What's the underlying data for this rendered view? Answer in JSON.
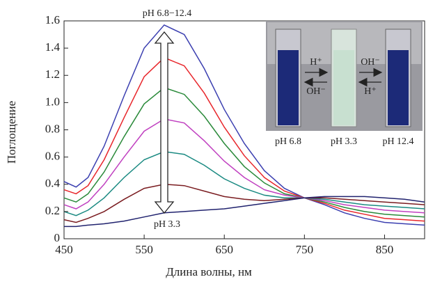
{
  "chart_data": {
    "type": "line",
    "xlabel": "Длина волны, нм",
    "ylabel": "Поглощение",
    "x": [
      450,
      465,
      480,
      500,
      525,
      550,
      575,
      600,
      625,
      650,
      675,
      700,
      725,
      750,
      775,
      800,
      825,
      850,
      875,
      900
    ],
    "series": [
      {
        "color": "#3b3fb0",
        "values": [
          0.42,
          0.38,
          0.45,
          0.68,
          1.05,
          1.4,
          1.57,
          1.5,
          1.25,
          0.95,
          0.7,
          0.5,
          0.37,
          0.3,
          0.25,
          0.19,
          0.15,
          0.12,
          0.11,
          0.1
        ]
      },
      {
        "color": "#e8262b",
        "values": [
          0.36,
          0.33,
          0.39,
          0.58,
          0.89,
          1.19,
          1.33,
          1.27,
          1.07,
          0.82,
          0.61,
          0.45,
          0.35,
          0.3,
          0.26,
          0.21,
          0.18,
          0.15,
          0.14,
          0.13
        ]
      },
      {
        "color": "#2a8a3a",
        "values": [
          0.3,
          0.27,
          0.33,
          0.49,
          0.75,
          0.99,
          1.11,
          1.06,
          0.9,
          0.7,
          0.53,
          0.41,
          0.33,
          0.3,
          0.27,
          0.23,
          0.2,
          0.18,
          0.17,
          0.16
        ]
      },
      {
        "color": "#c040c0",
        "values": [
          0.25,
          0.22,
          0.27,
          0.4,
          0.6,
          0.79,
          0.88,
          0.85,
          0.72,
          0.57,
          0.45,
          0.36,
          0.32,
          0.3,
          0.28,
          0.25,
          0.23,
          0.21,
          0.2,
          0.19
        ]
      },
      {
        "color": "#1a8a82",
        "values": [
          0.2,
          0.17,
          0.21,
          0.3,
          0.45,
          0.58,
          0.64,
          0.62,
          0.54,
          0.44,
          0.37,
          0.32,
          0.3,
          0.3,
          0.29,
          0.27,
          0.25,
          0.24,
          0.23,
          0.22
        ]
      },
      {
        "color": "#7a1c20",
        "values": [
          0.14,
          0.12,
          0.15,
          0.2,
          0.29,
          0.37,
          0.4,
          0.39,
          0.35,
          0.31,
          0.29,
          0.28,
          0.29,
          0.3,
          0.3,
          0.29,
          0.28,
          0.27,
          0.26,
          0.25
        ]
      },
      {
        "color": "#20226e",
        "values": [
          0.09,
          0.09,
          0.1,
          0.11,
          0.13,
          0.16,
          0.19,
          0.2,
          0.21,
          0.22,
          0.24,
          0.26,
          0.28,
          0.3,
          0.31,
          0.31,
          0.31,
          0.3,
          0.29,
          0.27
        ]
      }
    ],
    "xlim": [
      450,
      900
    ],
    "xticks": [
      450,
      550,
      650,
      750,
      850
    ],
    "ylim": [
      0,
      1.6
    ],
    "yticks": [
      0,
      0.2,
      0.4,
      0.6,
      0.8,
      {
        "value": 1,
        "label": "1.0"
      },
      1.2,
      1.4,
      1.6
    ],
    "grid": false,
    "annotations": [
      "pH 6.8−12.4",
      "pH 3.3"
    ],
    "inset_labels": [
      "pH 6.8",
      "pH 3.3",
      "pH 12.4"
    ],
    "inset_arrows": [
      "H⁺",
      "OH⁻",
      "OH⁻",
      "H⁺"
    ]
  }
}
